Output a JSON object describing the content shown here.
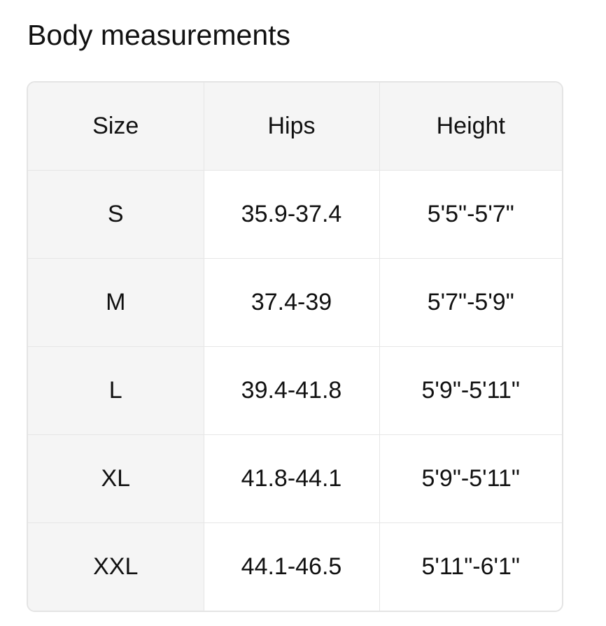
{
  "title": "Body measurements",
  "table": {
    "headers": [
      "Size",
      "Hips",
      "Height"
    ],
    "rows": [
      [
        "S",
        "35.9-37.4",
        "5'5\"-5'7\""
      ],
      [
        "M",
        "37.4-39",
        "5'7\"-5'9\""
      ],
      [
        "L",
        "39.4-41.8",
        "5'9\"-5'11\""
      ],
      [
        "XL",
        "41.8-44.1",
        "5'9\"-5'11\""
      ],
      [
        "XXL",
        "44.1-46.5",
        "5'11\"-6'1\""
      ]
    ]
  },
  "colors": {
    "header_bg": "#f5f5f5",
    "border": "#e6e6e6",
    "text": "#111111"
  }
}
